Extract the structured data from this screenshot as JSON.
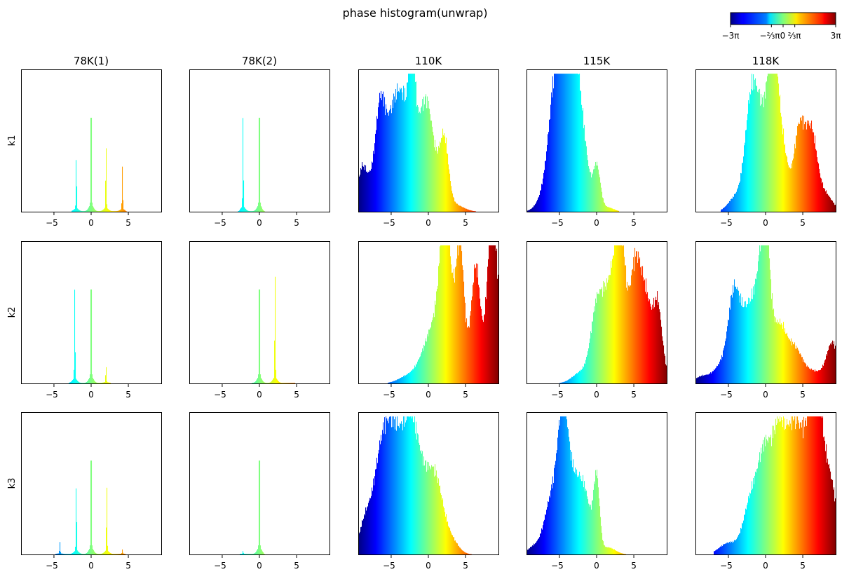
{
  "figure": {
    "title": "phase histogram(unwrap)",
    "colorbar": {
      "colormap": "jet",
      "range": [
        -9.42477796,
        9.42477796
      ],
      "ticks": [
        {
          "value": -9.42477796,
          "label": "−3π"
        },
        {
          "value": -2.0943951,
          "label": "−⅔π"
        },
        {
          "value": 0,
          "label": "0"
        },
        {
          "value": 2.0943951,
          "label": "⅔π"
        },
        {
          "value": 9.42477796,
          "label": "3π"
        }
      ]
    },
    "columns": [
      "78K(1)",
      "78K(2)",
      "110K",
      "115K",
      "118K"
    ],
    "rows": [
      "k1",
      "k2",
      "k3"
    ]
  },
  "chart_data": {
    "type": "histogram-grid",
    "xlim": [
      -9.42477796,
      9.42477796
    ],
    "xticks": [
      -5,
      0,
      5
    ],
    "y_axis": "hidden",
    "color_by": "x value (jet colormap over [-3π, 3π])",
    "panels": [
      {
        "row": "k1",
        "column": "78K(1)",
        "kind": "peaks",
        "width": 0.05,
        "floor": [
          -2.6,
          4.6
        ],
        "peaks": [
          {
            "x": -2.0,
            "h": 0.39
          },
          {
            "x": 0,
            "h": 0.95
          },
          {
            "x": 2.0,
            "h": 0.48
          },
          {
            "x": 4.2,
            "h": 0.3
          }
        ]
      },
      {
        "row": "k1",
        "column": "78K(2)",
        "kind": "peaks",
        "width": 0.05,
        "floor": [
          -2.6,
          0.4
        ],
        "peaks": [
          {
            "x": -2.2,
            "h": 0.65
          },
          {
            "x": 0,
            "h": 0.95
          }
        ]
      },
      {
        "row": "k1",
        "column": "110K",
        "kind": "broad",
        "range": [
          -9.4,
          6.4
        ],
        "comps": [
          {
            "x": -9.0,
            "h": 0.22,
            "w": 0.5
          },
          {
            "x": -8.0,
            "h": 0.2,
            "w": 0.8
          },
          {
            "x": -6.5,
            "h": 0.52,
            "w": 0.6
          },
          {
            "x": -5.0,
            "h": 0.55,
            "w": 1.2
          },
          {
            "x": -3.5,
            "h": 0.45,
            "w": 1.0
          },
          {
            "x": -2.2,
            "h": 0.8,
            "w": 0.35
          },
          {
            "x": -1.5,
            "h": 0.45,
            "w": 1.3
          },
          {
            "x": 0,
            "h": 0.52,
            "w": 0.9
          },
          {
            "x": 2.1,
            "h": 0.48,
            "w": 0.6
          },
          {
            "x": 3.5,
            "h": 0.05,
            "w": 1.2
          }
        ]
      },
      {
        "row": "k1",
        "column": "115K",
        "kind": "broad",
        "range": [
          -9.4,
          3.0
        ],
        "comps": [
          {
            "x": -7.0,
            "h": 0.1,
            "w": 1.0
          },
          {
            "x": -5.5,
            "h": 0.8,
            "w": 0.9
          },
          {
            "x": -4.0,
            "h": 0.7,
            "w": 1.0
          },
          {
            "x": -2.7,
            "h": 0.75,
            "w": 0.7
          },
          {
            "x": -1.5,
            "h": 0.3,
            "w": 0.6
          },
          {
            "x": 0,
            "h": 0.32,
            "w": 0.5
          },
          {
            "x": 1.5,
            "h": 0.03,
            "w": 0.8
          }
        ]
      },
      {
        "row": "k1",
        "column": "118K",
        "kind": "broad",
        "range": [
          -6.0,
          9.4
        ],
        "comps": [
          {
            "x": -4.0,
            "h": 0.1,
            "w": 1.0
          },
          {
            "x": -2.0,
            "h": 0.55,
            "w": 0.8
          },
          {
            "x": -0.5,
            "h": 0.65,
            "w": 1.2
          },
          {
            "x": 1.0,
            "h": 0.88,
            "w": 0.6
          },
          {
            "x": 2.2,
            "h": 0.45,
            "w": 0.8
          },
          {
            "x": 4.5,
            "h": 0.55,
            "w": 0.7
          },
          {
            "x": 6.1,
            "h": 0.55,
            "w": 0.8
          },
          {
            "x": 8.0,
            "h": 0.12,
            "w": 1.0
          }
        ]
      },
      {
        "row": "k2",
        "column": "78K(1)",
        "kind": "peaks",
        "width": 0.05,
        "floor": [
          -3.0,
          2.6
        ],
        "peaks": [
          {
            "x": -2.2,
            "h": 0.65
          },
          {
            "x": 0,
            "h": 0.95
          },
          {
            "x": 2.0,
            "h": 0.12
          }
        ]
      },
      {
        "row": "k2",
        "column": "78K(2)",
        "kind": "peaks",
        "width": 0.05,
        "floor": [
          -1.0,
          4.8
        ],
        "peaks": [
          {
            "x": 0,
            "h": 0.95
          },
          {
            "x": 2.1,
            "h": 0.77
          }
        ]
      },
      {
        "row": "k2",
        "column": "110K",
        "kind": "broad",
        "range": [
          -5.5,
          9.4
        ],
        "comps": [
          {
            "x": -3.0,
            "h": 0.04,
            "w": 1.2
          },
          {
            "x": 0.5,
            "h": 0.3,
            "w": 1.5
          },
          {
            "x": 2.2,
            "h": 0.68,
            "w": 0.6
          },
          {
            "x": 3.0,
            "h": 0.5,
            "w": 1.5
          },
          {
            "x": 4.3,
            "h": 0.65,
            "w": 0.5
          },
          {
            "x": 6.4,
            "h": 0.78,
            "w": 0.6
          },
          {
            "x": 8.5,
            "h": 0.85,
            "w": 0.6
          },
          {
            "x": 9.2,
            "h": 0.45,
            "w": 1.0
          }
        ]
      },
      {
        "row": "k2",
        "column": "115K",
        "kind": "broad",
        "range": [
          -5.0,
          9.4
        ],
        "comps": [
          {
            "x": -2.0,
            "h": 0.08,
            "w": 1.2
          },
          {
            "x": 0,
            "h": 0.45,
            "w": 0.8
          },
          {
            "x": 2.0,
            "h": 0.7,
            "w": 1.1
          },
          {
            "x": 3.2,
            "h": 0.8,
            "w": 0.6
          },
          {
            "x": 5.2,
            "h": 0.82,
            "w": 0.8
          },
          {
            "x": 6.8,
            "h": 0.52,
            "w": 0.8
          },
          {
            "x": 8.2,
            "h": 0.45,
            "w": 0.5
          },
          {
            "x": 9.0,
            "h": 0.12,
            "w": 0.5
          }
        ]
      },
      {
        "row": "k2",
        "column": "118K",
        "kind": "broad",
        "range": [
          -9.4,
          9.4
        ],
        "comps": [
          {
            "x": -8.5,
            "h": 0.05,
            "w": 1.0
          },
          {
            "x": -6.0,
            "h": 0.12,
            "w": 1.0
          },
          {
            "x": -4.2,
            "h": 0.62,
            "w": 0.8
          },
          {
            "x": -2.5,
            "h": 0.4,
            "w": 0.8
          },
          {
            "x": -1.0,
            "h": 0.55,
            "w": 0.8
          },
          {
            "x": 0,
            "h": 0.88,
            "w": 0.6
          },
          {
            "x": 1.8,
            "h": 0.4,
            "w": 1.0
          },
          {
            "x": 4.0,
            "h": 0.22,
            "w": 1.0
          },
          {
            "x": 6.5,
            "h": 0.08,
            "w": 1.2
          },
          {
            "x": 9.0,
            "h": 0.28,
            "w": 0.8
          }
        ]
      },
      {
        "row": "k3",
        "column": "78K(1)",
        "kind": "peaks",
        "width": 0.05,
        "floor": [
          -4.8,
          4.6
        ],
        "peaks": [
          {
            "x": -4.2,
            "h": 0.08
          },
          {
            "x": -2.0,
            "h": 0.5
          },
          {
            "x": 0,
            "h": 0.95
          },
          {
            "x": 2.1,
            "h": 0.48
          },
          {
            "x": 4.2,
            "h": 0.03
          }
        ]
      },
      {
        "row": "k3",
        "column": "78K(2)",
        "kind": "peaks",
        "width": 0.05,
        "floor": [
          -2.6,
          0.6
        ],
        "peaks": [
          {
            "x": -2.2,
            "h": 0.02
          },
          {
            "x": 0,
            "h": 0.95
          }
        ]
      },
      {
        "row": "k3",
        "column": "110K",
        "kind": "broad",
        "range": [
          -9.4,
          6.5
        ],
        "comps": [
          {
            "x": -8.5,
            "h": 0.22,
            "w": 0.8
          },
          {
            "x": -6.5,
            "h": 0.52,
            "w": 1.0
          },
          {
            "x": -4.7,
            "h": 0.78,
            "w": 1.2
          },
          {
            "x": -2.5,
            "h": 0.65,
            "w": 1.0
          },
          {
            "x": -1.0,
            "h": 0.45,
            "w": 1.2
          },
          {
            "x": 1.0,
            "h": 0.45,
            "w": 1.0
          },
          {
            "x": 3.0,
            "h": 0.1,
            "w": 1.0
          }
        ]
      },
      {
        "row": "k3",
        "column": "115K",
        "kind": "broad",
        "range": [
          -9.4,
          4.0
        ],
        "comps": [
          {
            "x": -8.5,
            "h": 0.05,
            "w": 0.8
          },
          {
            "x": -6.0,
            "h": 0.4,
            "w": 1.0
          },
          {
            "x": -4.5,
            "h": 0.85,
            "w": 0.7
          },
          {
            "x": -3.0,
            "h": 0.45,
            "w": 0.9
          },
          {
            "x": -1.5,
            "h": 0.35,
            "w": 0.8
          },
          {
            "x": 0,
            "h": 0.5,
            "w": 0.4
          },
          {
            "x": 1.5,
            "h": 0.05,
            "w": 1.0
          }
        ]
      },
      {
        "row": "k3",
        "column": "118K",
        "kind": "broad",
        "range": [
          -7.0,
          9.4
        ],
        "comps": [
          {
            "x": -5.0,
            "h": 0.08,
            "w": 1.2
          },
          {
            "x": -2.0,
            "h": 0.35,
            "w": 1.0
          },
          {
            "x": 0,
            "h": 0.7,
            "w": 1.0
          },
          {
            "x": 1.8,
            "h": 0.65,
            "w": 0.8
          },
          {
            "x": 3.5,
            "h": 0.7,
            "w": 1.0
          },
          {
            "x": 5.5,
            "h": 0.7,
            "w": 1.2
          },
          {
            "x": 6.8,
            "h": 0.9,
            "w": 0.7
          },
          {
            "x": 8.5,
            "h": 0.55,
            "w": 1.0
          }
        ]
      }
    ]
  }
}
